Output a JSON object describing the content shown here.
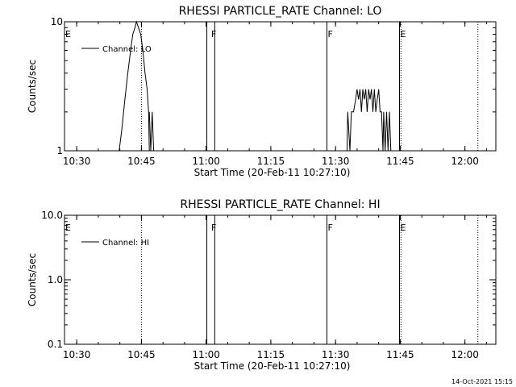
{
  "stamp": "14-Oct-2021 15:15",
  "chart_data": [
    {
      "type": "line",
      "title": "RHESSI PARTICLE_RATE Channel: LO",
      "xlabel": "Start Time (20-Feb-11 10:27:10)",
      "ylabel": "Counts/sec",
      "yscale": "log",
      "xlim": [
        "10:27:10",
        "12:07:10"
      ],
      "ylim": [
        1,
        10
      ],
      "xticks": [
        "10:30",
        "10:45",
        "11:00",
        "11:15",
        "11:30",
        "11:45",
        "12:00"
      ],
      "yticks": [
        "1",
        "10"
      ],
      "grid": false,
      "legend": {
        "position": "top-left",
        "entries": [
          "Channel: LO"
        ]
      },
      "annotations": [
        {
          "text": "E",
          "x": "10:27:10"
        },
        {
          "text": "F",
          "x": "11:01:00"
        },
        {
          "text": "F",
          "x": "11:28:00"
        },
        {
          "text": "E",
          "x": "11:44:50"
        }
      ],
      "vlines_solid": [
        "11:00:10",
        "11:02:00",
        "11:28:00",
        "11:44:50"
      ],
      "vlines_dotted": [
        "10:45:00",
        "11:45:10",
        "12:03:00"
      ],
      "series": [
        {
          "name": "Channel: LO",
          "segments": [
            [
              [
                "10:39:50",
                1
              ],
              [
                "10:40:30",
                1.5
              ],
              [
                "10:41:10",
                2.5
              ],
              [
                "10:41:50",
                4
              ],
              [
                "10:42:30",
                6
              ],
              [
                "10:43:00",
                8
              ],
              [
                "10:43:30",
                9
              ],
              [
                "10:43:50",
                10
              ],
              [
                "10:44:20",
                9
              ],
              [
                "10:44:50",
                8
              ],
              [
                "10:45:20",
                6
              ],
              [
                "10:45:50",
                4
              ],
              [
                "10:46:20",
                3
              ],
              [
                "10:46:40",
                2
              ],
              [
                "10:46:50",
                1
              ]
            ],
            [
              [
                "10:46:50",
                2
              ],
              [
                "10:47:10",
                1
              ],
              [
                "10:47:30",
                2
              ],
              [
                "10:47:50",
                1
              ]
            ],
            [
              [
                "11:32:40",
                1
              ],
              [
                "11:32:50",
                2
              ],
              [
                "11:33:20",
                1
              ],
              [
                "11:33:40",
                2
              ],
              [
                "11:34:10",
                2
              ],
              [
                "11:34:40",
                2.5
              ],
              [
                "11:35:00",
                3
              ],
              [
                "11:35:20",
                2.5
              ],
              [
                "11:35:40",
                3
              ],
              [
                "11:36:00",
                2
              ],
              [
                "11:36:20",
                3
              ],
              [
                "11:36:40",
                2.5
              ],
              [
                "11:37:00",
                3
              ],
              [
                "11:37:20",
                2
              ],
              [
                "11:37:40",
                3
              ],
              [
                "11:38:00",
                2.5
              ],
              [
                "11:38:20",
                3
              ],
              [
                "11:38:40",
                2
              ],
              [
                "11:39:00",
                3
              ],
              [
                "11:39:20",
                2
              ],
              [
                "11:39:40",
                2.5
              ],
              [
                "11:40:00",
                3
              ],
              [
                "11:40:20",
                2
              ],
              [
                "11:40:40",
                2
              ],
              [
                "11:41:00",
                1
              ],
              [
                "11:41:10",
                2
              ],
              [
                "11:41:30",
                1
              ],
              [
                "11:41:50",
                2
              ],
              [
                "11:42:10",
                1
              ],
              [
                "11:42:30",
                2
              ],
              [
                "11:42:50",
                1
              ],
              [
                "11:43:10",
                1
              ]
            ]
          ]
        }
      ]
    },
    {
      "type": "line",
      "title": "RHESSI PARTICLE_RATE Channel: HI",
      "xlabel": "Start Time (20-Feb-11 10:27:10)",
      "ylabel": "Counts/sec",
      "yscale": "log",
      "xlim": [
        "10:27:10",
        "12:07:10"
      ],
      "ylim": [
        0.1,
        10
      ],
      "xticks": [
        "10:30",
        "10:45",
        "11:00",
        "11:15",
        "11:30",
        "11:45",
        "12:00"
      ],
      "yticks": [
        "0.1",
        "1.0",
        "10.0"
      ],
      "grid": false,
      "legend": {
        "position": "top-left",
        "entries": [
          "Channel: HI"
        ]
      },
      "annotations": [
        {
          "text": "E",
          "x": "10:27:10"
        },
        {
          "text": "F",
          "x": "11:01:00"
        },
        {
          "text": "F",
          "x": "11:28:00"
        },
        {
          "text": "E",
          "x": "11:44:50"
        }
      ],
      "vlines_solid": [
        "11:00:10",
        "11:02:00",
        "11:28:00",
        "11:44:50"
      ],
      "vlines_dotted": [
        "10:45:00",
        "11:45:10",
        "12:03:00"
      ],
      "series": [
        {
          "name": "Channel: HI",
          "segments": []
        }
      ]
    }
  ]
}
